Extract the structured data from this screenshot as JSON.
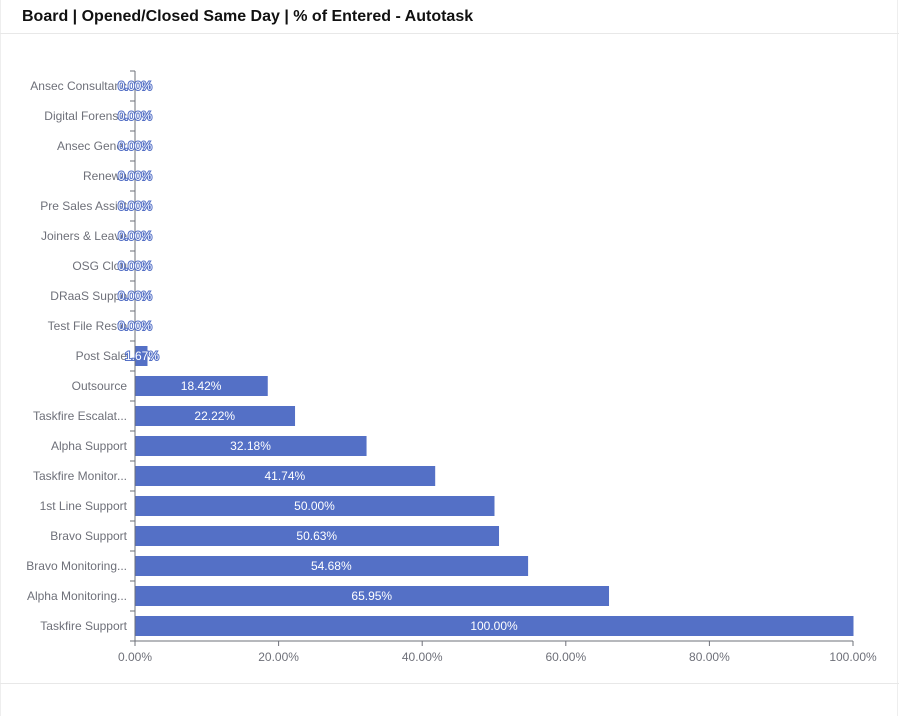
{
  "header": {
    "title": "Board | Opened/Closed Same Day | % of Entered - Autotask"
  },
  "chart_data": {
    "type": "bar",
    "orientation": "horizontal",
    "categories": [
      "Ansec Consultanc",
      "Digital Forensic",
      "Ansec Gener",
      "Renewa",
      "Pre Sales Assist",
      "Joiners & Leave",
      "OSG Clou",
      "DRaaS Suppo",
      "Test File Resto",
      "Post Sale",
      "Outsource",
      "Taskfire Escalat...",
      "Alpha Support",
      "Taskfire Monitor...",
      "1st Line Support",
      "Bravo Support",
      "Bravo Monitoring...",
      "Alpha Monitoring...",
      "Taskfire Support"
    ],
    "values": [
      0,
      0,
      0,
      0,
      0,
      0,
      0,
      0,
      0,
      1.67,
      18.42,
      22.22,
      32.18,
      41.74,
      50.0,
      50.63,
      54.68,
      65.95,
      100.0
    ],
    "data_labels": [
      "0.00%",
      "0.00%",
      "0.00%",
      "0.00%",
      "0.00%",
      "0.00%",
      "0.00%",
      "0.00%",
      "0.00%",
      "1.67%",
      "18.42%",
      "22.22%",
      "32.18%",
      "41.74%",
      "50.00%",
      "50.63%",
      "54.68%",
      "65.95%",
      "100.00%"
    ],
    "xlim": [
      0,
      100
    ],
    "x_ticks": [
      "0.00%",
      "20.00%",
      "40.00%",
      "60.00%",
      "80.00%",
      "100.00%"
    ],
    "grid": false,
    "color": "#5470c6"
  }
}
